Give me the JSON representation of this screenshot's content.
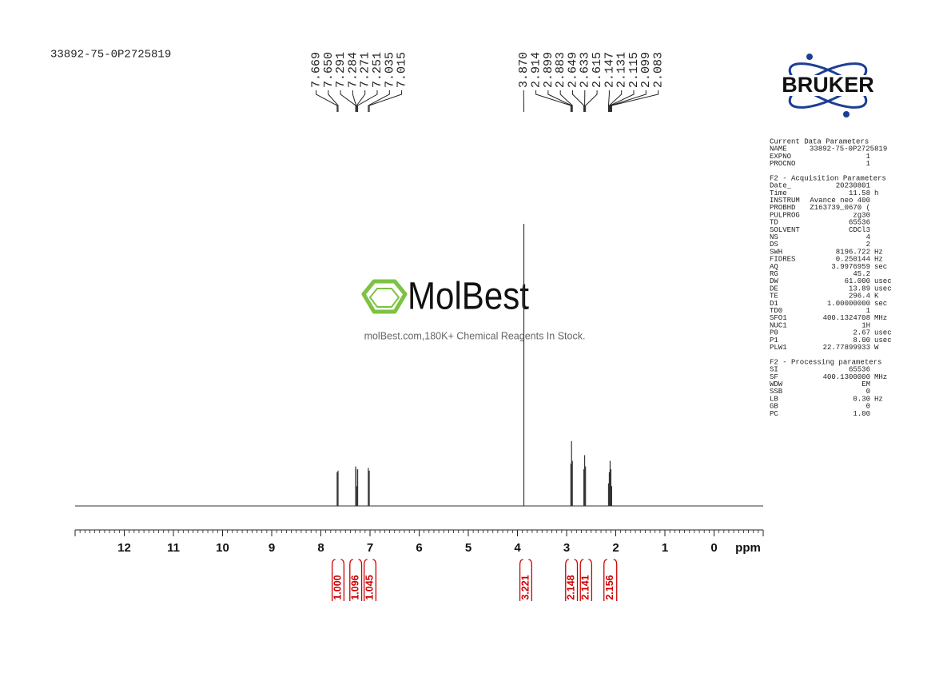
{
  "chart_data": {
    "type": "nmr",
    "title": "33892-75-0P2725819",
    "xlabel": "ppm",
    "xlim": [
      13,
      -1
    ],
    "xticks": [
      12,
      11,
      10,
      9,
      8,
      7,
      6,
      5,
      4,
      3,
      2,
      1,
      0
    ],
    "ylim": [
      0,
      100
    ],
    "color": "#333333",
    "peaks": {
      "x": [
        7.669,
        7.65,
        7.291,
        7.284,
        7.271,
        7.251,
        7.035,
        7.015,
        3.87,
        2.914,
        2.899,
        2.883,
        2.649,
        2.633,
        2.615,
        2.147,
        2.131,
        2.115,
        2.099,
        2.083
      ],
      "x_labels": [
        "7.669",
        "7.650",
        "7.291",
        "7.284",
        "7.271",
        "7.251",
        "7.035",
        "7.015",
        "3.870",
        "2.914",
        "2.899",
        "2.883",
        "2.649",
        "2.633",
        "2.615",
        "2.147",
        "2.131",
        "2.115",
        "2.099",
        "2.083"
      ],
      "values": [
        12,
        12.5,
        14,
        13,
        7,
        13,
        13.5,
        12.5,
        100,
        15,
        23,
        16,
        13,
        18,
        14,
        8,
        12,
        16,
        13,
        7
      ]
    },
    "integrals": {
      "color": "#cc0000",
      "ranges": [
        [
          7.77,
          7.53
        ],
        [
          7.41,
          7.17
        ],
        [
          7.12,
          6.88
        ],
        [
          3.95,
          3.71
        ],
        [
          3.02,
          2.78
        ],
        [
          2.72,
          2.49
        ],
        [
          2.24,
          1.98
        ]
      ],
      "values": [
        1.0,
        1.096,
        1.045,
        3.221,
        2.148,
        2.141,
        2.156
      ],
      "value_labels": [
        "1.000",
        "1.096",
        "1.045",
        "3.221",
        "2.148",
        "2.141",
        "2.156"
      ]
    }
  },
  "logo": "BRUKER",
  "watermark": {
    "brand": "MolBest",
    "tagline": "molBest.com,180K+ Chemical Reagents In Stock."
  },
  "parameters": [
    {
      "heading": "Current Data Parameters",
      "rows": [
        [
          "NAME",
          "33892-75-0P2725819"
        ],
        [
          "EXPNO",
          "1"
        ],
        [
          "PROCNO",
          "1"
        ]
      ]
    },
    {
      "heading": "F2 - Acquisition Parameters",
      "rows": [
        [
          "Date_",
          "20230801"
        ],
        [
          "Time",
          "11.58",
          "h"
        ],
        [
          "INSTRUM",
          "Avance neo 400"
        ],
        [
          "PROBHD",
          "Z163739_0670 ("
        ],
        [
          "PULPROG",
          "zg30"
        ],
        [
          "TD",
          "65536"
        ],
        [
          "SOLVENT",
          "CDCl3"
        ],
        [
          "NS",
          "4"
        ],
        [
          "DS",
          "2"
        ],
        [
          "SWH",
          "8196.722",
          "Hz"
        ],
        [
          "FIDRES",
          "0.250144",
          "Hz"
        ],
        [
          "AQ",
          "3.9976959",
          "sec"
        ],
        [
          "RG",
          "45.2"
        ],
        [
          "DW",
          "61.000",
          "usec"
        ],
        [
          "DE",
          "13.89",
          "usec"
        ],
        [
          "TE",
          "296.4",
          "K"
        ],
        [
          "D1",
          "1.00000000",
          "sec"
        ],
        [
          "TD0",
          "1"
        ],
        [
          "SFO1",
          "400.1324708",
          "MHz"
        ],
        [
          "NUC1",
          "1H"
        ],
        [
          "P0",
          "2.67",
          "usec"
        ],
        [
          "P1",
          "8.00",
          "usec"
        ],
        [
          "PLW1",
          "22.77899933",
          "W"
        ]
      ]
    },
    {
      "heading": "F2 - Processing parameters",
      "rows": [
        [
          "SI",
          "65536"
        ],
        [
          "SF",
          "400.1300000",
          "MHz"
        ],
        [
          "WDW",
          "EM"
        ],
        [
          "SSB",
          "0"
        ],
        [
          "LB",
          "0.30",
          "Hz"
        ],
        [
          "GB",
          "0"
        ],
        [
          "PC",
          "1.00"
        ]
      ]
    }
  ]
}
